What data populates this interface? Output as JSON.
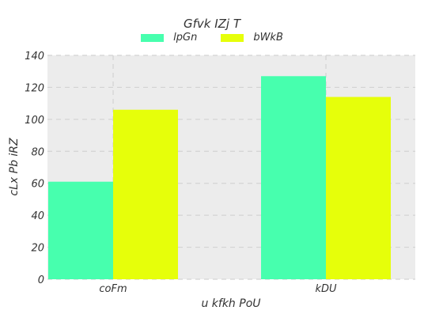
{
  "chart_data": {
    "type": "bar",
    "title": "Gfvk IZj T",
    "categories": [
      "coFm",
      "kDU"
    ],
    "series": [
      {
        "name": "lpGn",
        "values": [
          61,
          127
        ],
        "color": "#47ffae"
      },
      {
        "name": "bWkB",
        "values": [
          106,
          114
        ],
        "color": "#e6ff0a"
      }
    ],
    "xlabel": "u kfkh PoU",
    "ylabel": "cLx Pb iRZ",
    "ylim": [
      0,
      140
    ],
    "yticks": [
      0,
      20,
      40,
      60,
      80,
      100,
      120,
      140
    ],
    "grid": true,
    "legend_position": "top-center",
    "plot_background": "#ececec"
  }
}
